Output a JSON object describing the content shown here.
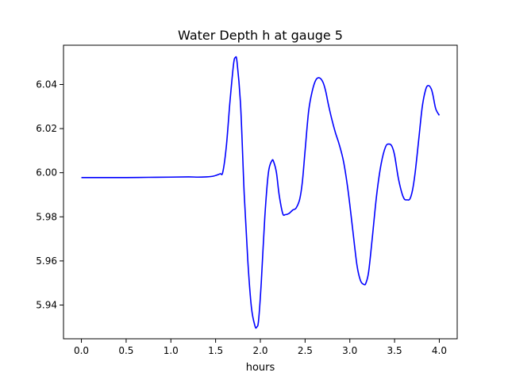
{
  "chart_data": {
    "type": "line",
    "title": "Water Depth h at gauge 5",
    "xlabel": "hours",
    "ylabel": "",
    "xlim": [
      -0.2,
      4.2
    ],
    "ylim": [
      5.9247,
      6.0578
    ],
    "xticks": [
      0.0,
      0.5,
      1.0,
      1.5,
      2.0,
      2.5,
      3.0,
      3.5,
      4.0
    ],
    "xtick_labels": [
      "0.0",
      "0.5",
      "1.0",
      "1.5",
      "2.0",
      "2.5",
      "3.0",
      "3.5",
      "4.0"
    ],
    "yticks": [
      5.94,
      5.96,
      5.98,
      6.0,
      6.02,
      6.04
    ],
    "ytick_labels": [
      "5.94",
      "5.96",
      "5.98",
      "6.00",
      "6.02",
      "6.04"
    ],
    "grid": false,
    "legend": "none",
    "series": [
      {
        "color": "#0000ff",
        "x": [
          0.0,
          0.25,
          0.5,
          0.75,
          1.0,
          1.2,
          1.3,
          1.4,
          1.48,
          1.55,
          1.58,
          1.62,
          1.66,
          1.7,
          1.72,
          1.74,
          1.78,
          1.82,
          1.86,
          1.9,
          1.94,
          1.96,
          1.98,
          2.01,
          2.05,
          2.09,
          2.13,
          2.15,
          2.18,
          2.21,
          2.25,
          2.28,
          2.32,
          2.36,
          2.4,
          2.44,
          2.47,
          2.5,
          2.54,
          2.58,
          2.62,
          2.66,
          2.7,
          2.73,
          2.76,
          2.8,
          2.84,
          2.88,
          2.93,
          2.98,
          3.03,
          3.08,
          3.12,
          3.16,
          3.18,
          3.21,
          3.25,
          3.3,
          3.35,
          3.4,
          3.44,
          3.47,
          3.5,
          3.54,
          3.58,
          3.61,
          3.64,
          3.67,
          3.7,
          3.73,
          3.77,
          3.81,
          3.85,
          3.88,
          3.91,
          3.93,
          3.96,
          4.0
        ],
        "y": [
          5.9978,
          5.9978,
          5.9978,
          5.9979,
          5.998,
          5.9981,
          5.998,
          5.9981,
          5.9985,
          5.9995,
          6.0002,
          6.012,
          6.032,
          6.049,
          6.0522,
          6.05,
          6.03,
          5.99,
          5.96,
          5.939,
          5.9305,
          5.93,
          5.933,
          5.95,
          5.98,
          6.0,
          6.0055,
          6.0048,
          6.0,
          5.99,
          5.9815,
          5.981,
          5.9815,
          5.983,
          5.984,
          5.988,
          5.996,
          6.01,
          6.028,
          6.037,
          6.042,
          6.043,
          6.041,
          6.037,
          6.031,
          6.024,
          6.018,
          6.013,
          6.005,
          5.992,
          5.975,
          5.958,
          5.951,
          5.9493,
          5.95,
          5.955,
          5.97,
          5.99,
          6.004,
          6.0118,
          6.013,
          6.012,
          6.008,
          5.998,
          5.991,
          5.988,
          5.9877,
          5.988,
          5.992,
          6.0,
          6.015,
          6.03,
          6.038,
          6.0395,
          6.038,
          6.035,
          6.029,
          6.026
        ]
      }
    ]
  }
}
